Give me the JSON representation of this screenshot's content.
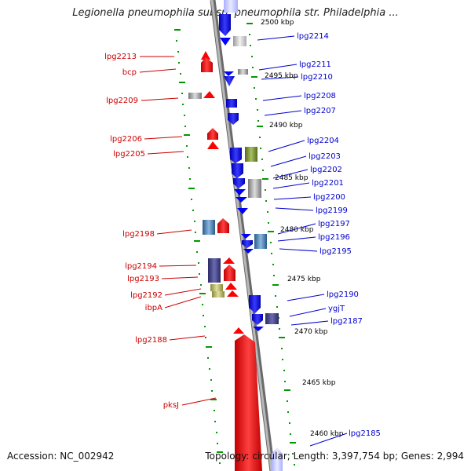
{
  "header": {
    "title": "Legionella pneumophila subsp. pneumophila str. Philadelphia ...",
    "accession": "Accession: NC_002942",
    "info": "Topology: circular; Length: 3,397,754 bp; Genes: 2,994"
  },
  "kbp_labels": [
    "2500 kbp",
    "2495 kbp",
    "2490 kbp",
    "2485 kbp",
    "2480 kbp",
    "2475 kbp",
    "2470 kbp",
    "2465 kbp",
    "2460 kbp"
  ],
  "left_genes": [
    "lpg2213",
    "bcp",
    "lpg2209",
    "lpg2206",
    "lpg2205",
    "lpg2198",
    "lpg2194",
    "lpg2193",
    "lpg2192",
    "ibpA",
    "lpg2188",
    "pksJ"
  ],
  "right_genes": [
    "lpg2214",
    "lpg2211",
    "lpg2210",
    "lpg2208",
    "lpg2207",
    "lpg2204",
    "lpg2203",
    "lpg2202",
    "lpg2201",
    "lpg2200",
    "lpg2199",
    "lpg2197",
    "lpg2196",
    "lpg2195",
    "lpg2190",
    "ygjT",
    "lpg2187",
    "lpg2185"
  ],
  "colors": {
    "forward": "#ff0000",
    "reverse": "#0000ff",
    "backbone": "#999999",
    "tick": "#009900",
    "left_label": "#cc0000",
    "right_label": "#0000cc"
  }
}
